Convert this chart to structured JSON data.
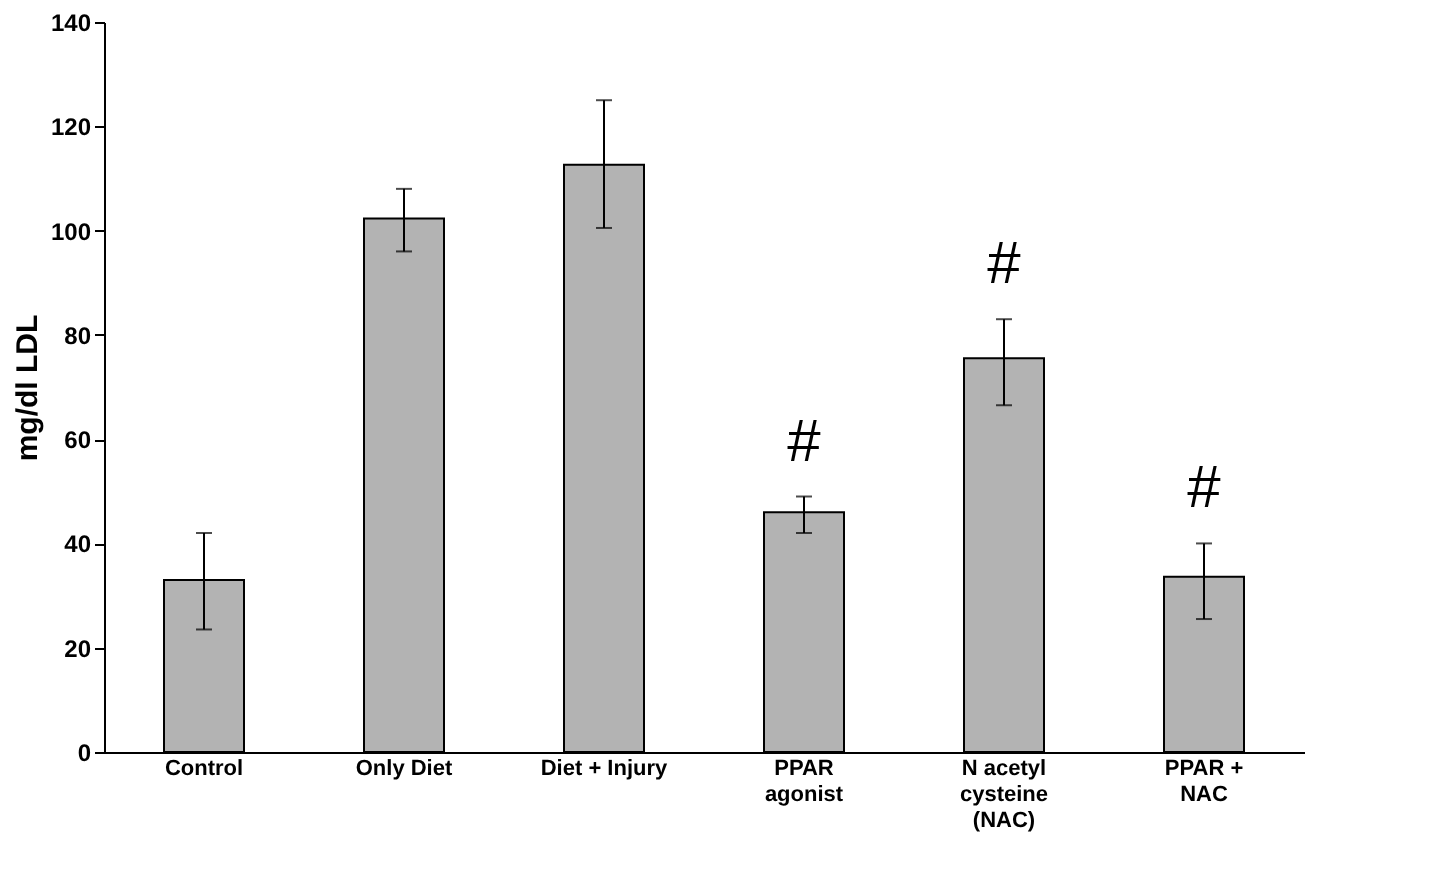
{
  "chart_data": {
    "type": "bar",
    "ylabel": "mg/dl LDL",
    "categories": [
      "Control",
      "Only Diet",
      "Diet + Injury",
      "PPAR\nagonist",
      "N acetyl\ncysteine\n(NAC)",
      "PPAR +\nNAC"
    ],
    "values": [
      33,
      102.3,
      112.6,
      46,
      75.5,
      33.6
    ],
    "errors": [
      [
        23.5,
        42
      ],
      [
        96,
        108
      ],
      [
        100.5,
        125
      ],
      [
        42,
        49
      ],
      [
        66.5,
        83
      ],
      [
        25.5,
        40
      ]
    ],
    "color": "#b3b3b3",
    "ylim": [
      0,
      140
    ],
    "yticks": [
      0,
      20,
      40,
      60,
      80,
      100,
      120,
      140
    ],
    "grid": false,
    "annotations": [
      "#",
      "#",
      "#"
    ]
  }
}
